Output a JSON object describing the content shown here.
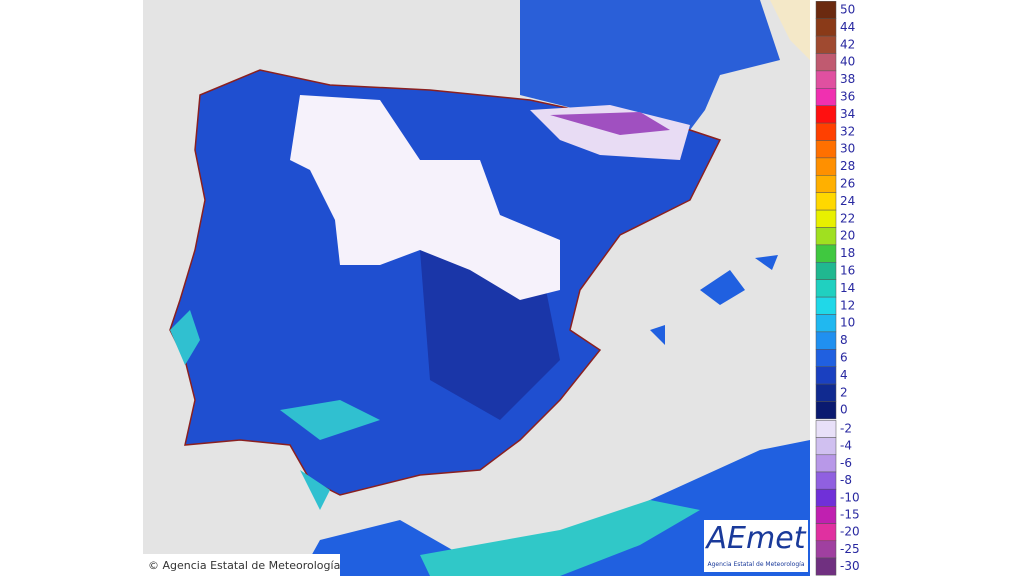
{
  "map": {
    "credit": "© Agencia Estatal de Meteorología",
    "logo": {
      "name": "AEmet",
      "subtitle": "Agencia Estatal de Meteorología"
    },
    "legend": {
      "upper": [
        {
          "label": "50",
          "color": "#6b2a10"
        },
        {
          "label": "44",
          "color": "#8a3a18"
        },
        {
          "label": "42",
          "color": "#a04a30"
        },
        {
          "label": "40",
          "color": "#c05a70"
        },
        {
          "label": "38",
          "color": "#e050a0"
        },
        {
          "label": "36",
          "color": "#f030b0"
        },
        {
          "label": "34",
          "color": "#ff1010"
        },
        {
          "label": "32",
          "color": "#ff4000"
        },
        {
          "label": "30",
          "color": "#ff7000"
        },
        {
          "label": "28",
          "color": "#ff9000"
        },
        {
          "label": "26",
          "color": "#ffb000"
        },
        {
          "label": "24",
          "color": "#ffd800"
        },
        {
          "label": "22",
          "color": "#e8f000"
        },
        {
          "label": "20",
          "color": "#a0e020"
        },
        {
          "label": "18",
          "color": "#40c840"
        },
        {
          "label": "16",
          "color": "#20b890"
        },
        {
          "label": "14",
          "color": "#20d0c0"
        },
        {
          "label": "12",
          "color": "#20d8e8"
        },
        {
          "label": "10",
          "color": "#20b8f0"
        },
        {
          "label": "8",
          "color": "#2090f0"
        },
        {
          "label": "6",
          "color": "#2060e0"
        },
        {
          "label": "4",
          "color": "#1a40c0"
        },
        {
          "label": "2",
          "color": "#102a90"
        },
        {
          "label": "0",
          "color": "#0a1a70"
        }
      ],
      "lower": [
        {
          "label": "-2",
          "color": "#e8e0f8"
        },
        {
          "label": "-4",
          "color": "#d0c0f0"
        },
        {
          "label": "-6",
          "color": "#b898e8"
        },
        {
          "label": "-8",
          "color": "#9060e0"
        },
        {
          "label": "-10",
          "color": "#7030d8"
        },
        {
          "label": "-15",
          "color": "#c020b0"
        },
        {
          "label": "-20",
          "color": "#e030a0"
        },
        {
          "label": "-25",
          "color": "#a040a0"
        },
        {
          "label": "-30",
          "color": "#703080"
        }
      ]
    }
  }
}
